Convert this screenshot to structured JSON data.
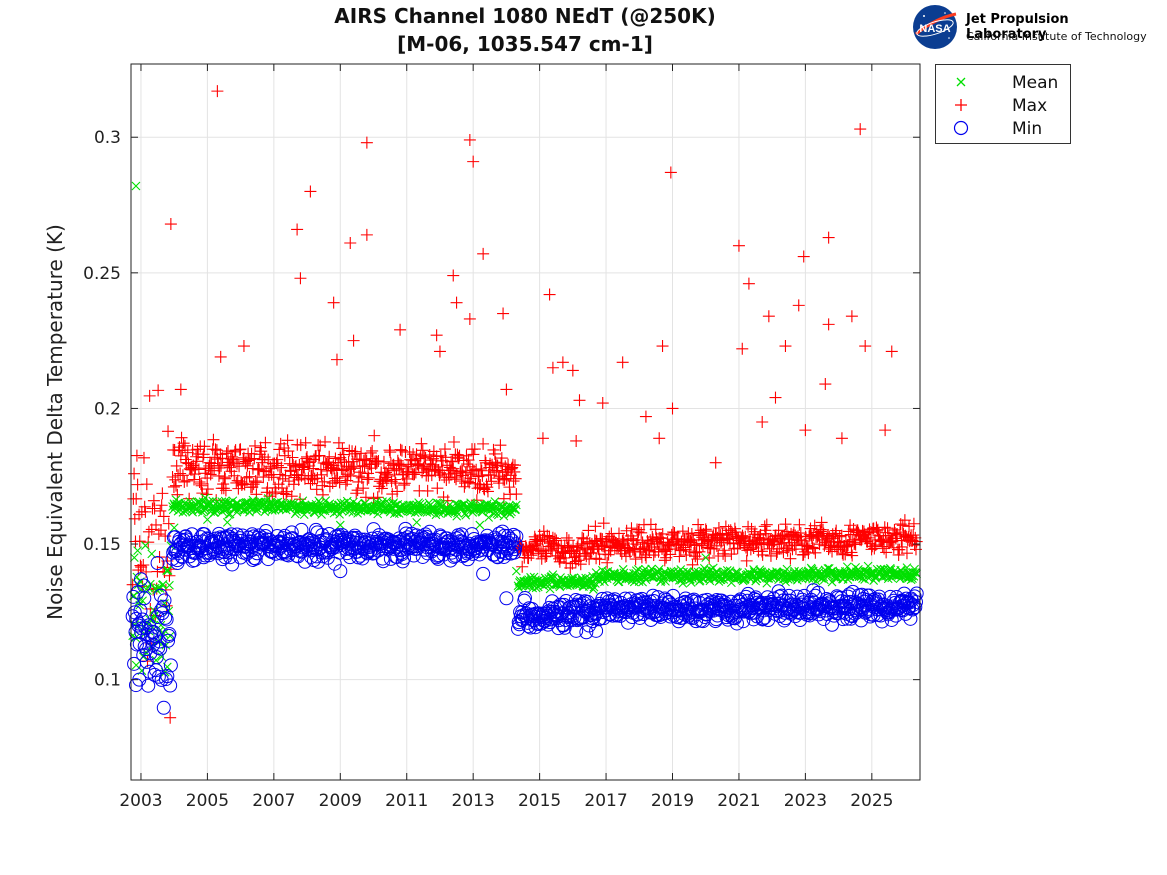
{
  "header": {
    "title_line1": "AIRS Channel 1080 NEdT (@250K)",
    "title_line2": "[M-06, 1035.547 cm-1]",
    "org_name": "Jet Propulsion Laboratory",
    "org_sub": "California Institute of Technology",
    "logo_text": "NASA"
  },
  "chart_data": {
    "type": "scatter",
    "title": "AIRS Channel 1080 NEdT (@250K)",
    "subtitle": "[M-06, 1035.547 cm-1]",
    "xlabel": "",
    "ylabel": "Noise Equivalent Delta Temperature (K)",
    "xlim": [
      2002.7,
      2026.45
    ],
    "ylim": [
      0.063,
      0.327
    ],
    "xticks": [
      2003,
      2005,
      2007,
      2009,
      2011,
      2013,
      2015,
      2017,
      2019,
      2021,
      2023,
      2025
    ],
    "yticks": [
      0.1,
      0.15,
      0.2,
      0.25,
      0.3
    ],
    "grid": true,
    "legend_position": "outside-top-right",
    "series": [
      {
        "name": "Mean",
        "marker": "x",
        "color": "#00e000",
        "segments": [
          {
            "x": [
              2002.75,
              2003.9
            ],
            "y": [
              0.125,
              0.125
            ],
            "spread": 0.012
          },
          {
            "x": [
              2003.95,
              2014.3
            ],
            "y": [
              0.164,
              0.163
            ],
            "spread": 0.0012
          },
          {
            "x": [
              2014.35,
              2016.7
            ],
            "y": [
              0.136,
              0.136
            ],
            "spread": 0.0012
          },
          {
            "x": [
              2016.7,
              2026.35
            ],
            "y": [
              0.138,
              0.139
            ],
            "spread": 0.0012
          }
        ],
        "outliers": [
          [
            2002.85,
            0.282
          ],
          [
            2002.8,
            0.145
          ],
          [
            2004.0,
            0.156
          ],
          [
            2005.0,
            0.159
          ],
          [
            2005.6,
            0.158
          ],
          [
            2009.0,
            0.157
          ],
          [
            2011.3,
            0.158
          ],
          [
            2013.2,
            0.157
          ],
          [
            2014.3,
            0.14
          ],
          [
            2020.0,
            0.145
          ]
        ]
      },
      {
        "name": "Max",
        "marker": "+",
        "color": "#ff0000",
        "segments": [
          {
            "x": [
              2002.75,
              2003.9
            ],
            "y": [
              0.155,
              0.145
            ],
            "spread": 0.02
          },
          {
            "x": [
              2003.95,
              2014.3
            ],
            "y": [
              0.178,
              0.177
            ],
            "spread": 0.0045
          },
          {
            "x": [
              2014.35,
              2016.7
            ],
            "y": [
              0.148,
              0.148
            ],
            "spread": 0.003
          },
          {
            "x": [
              2016.7,
              2026.35
            ],
            "y": [
              0.15,
              0.152
            ],
            "spread": 0.003
          }
        ],
        "outliers": [
          [
            2005.3,
            0.317
          ],
          [
            2012.9,
            0.299
          ],
          [
            2009.8,
            0.298
          ],
          [
            2013.0,
            0.291
          ],
          [
            2018.95,
            0.287
          ],
          [
            2024.65,
            0.303
          ],
          [
            2008.1,
            0.28
          ],
          [
            2003.9,
            0.268
          ],
          [
            2007.7,
            0.266
          ],
          [
            2009.8,
            0.264
          ],
          [
            2009.3,
            0.261
          ],
          [
            2021.0,
            0.26
          ],
          [
            2023.7,
            0.263
          ],
          [
            2013.3,
            0.257
          ],
          [
            2022.95,
            0.256
          ],
          [
            2007.8,
            0.248
          ],
          [
            2021.3,
            0.246
          ],
          [
            2012.4,
            0.249
          ],
          [
            2015.3,
            0.242
          ],
          [
            2012.5,
            0.239
          ],
          [
            2008.8,
            0.239
          ],
          [
            2022.8,
            0.238
          ],
          [
            2013.9,
            0.235
          ],
          [
            2012.9,
            0.233
          ],
          [
            2021.9,
            0.234
          ],
          [
            2024.4,
            0.234
          ],
          [
            2023.7,
            0.231
          ],
          [
            2011.9,
            0.227
          ],
          [
            2010.8,
            0.229
          ],
          [
            2009.4,
            0.225
          ],
          [
            2006.1,
            0.223
          ],
          [
            2018.7,
            0.223
          ],
          [
            2021.1,
            0.222
          ],
          [
            2022.4,
            0.223
          ],
          [
            2024.8,
            0.223
          ],
          [
            2025.6,
            0.221
          ],
          [
            2005.4,
            0.219
          ],
          [
            2012.0,
            0.221
          ],
          [
            2015.7,
            0.217
          ],
          [
            2017.5,
            0.217
          ],
          [
            2008.9,
            0.218
          ],
          [
            2004.2,
            0.207
          ],
          [
            2014.0,
            0.207
          ],
          [
            2015.4,
            0.215
          ],
          [
            2016.0,
            0.214
          ],
          [
            2023.6,
            0.209
          ],
          [
            2025.4,
            0.192
          ],
          [
            2016.2,
            0.203
          ],
          [
            2016.9,
            0.202
          ],
          [
            2018.2,
            0.197
          ],
          [
            2020.3,
            0.18
          ],
          [
            2023.0,
            0.192
          ],
          [
            2024.1,
            0.189
          ],
          [
            2022.1,
            0.204
          ],
          [
            2021.7,
            0.195
          ],
          [
            2019.0,
            0.2
          ],
          [
            2015.1,
            0.189
          ],
          [
            2016.1,
            0.188
          ],
          [
            2018.6,
            0.189
          ]
        ]
      },
      {
        "name": "Min",
        "marker": "o",
        "color": "#0000ee",
        "segments": [
          {
            "x": [
              2002.75,
              2003.9
            ],
            "y": [
              0.118,
              0.11
            ],
            "spread": 0.01
          },
          {
            "x": [
              2003.95,
              2014.3
            ],
            "y": [
              0.149,
              0.15
            ],
            "spread": 0.0025
          },
          {
            "x": [
              2014.35,
              2016.7
            ],
            "y": [
              0.124,
              0.124
            ],
            "spread": 0.0025
          },
          {
            "x": [
              2016.7,
              2026.35
            ],
            "y": [
              0.126,
              0.127
            ],
            "spread": 0.0025
          }
        ],
        "outliers": [
          [
            2002.85,
            0.098
          ],
          [
            2002.95,
            0.1
          ],
          [
            2003.0,
            0.137
          ],
          [
            2003.5,
            0.143
          ],
          [
            2003.1,
            0.13
          ],
          [
            2003.6,
            0.131
          ],
          [
            2014.0,
            0.13
          ],
          [
            2016.1,
            0.118
          ],
          [
            2016.7,
            0.118
          ],
          [
            2004.1,
            0.143
          ],
          [
            2009.0,
            0.14
          ],
          [
            2013.3,
            0.139
          ]
        ]
      }
    ]
  }
}
